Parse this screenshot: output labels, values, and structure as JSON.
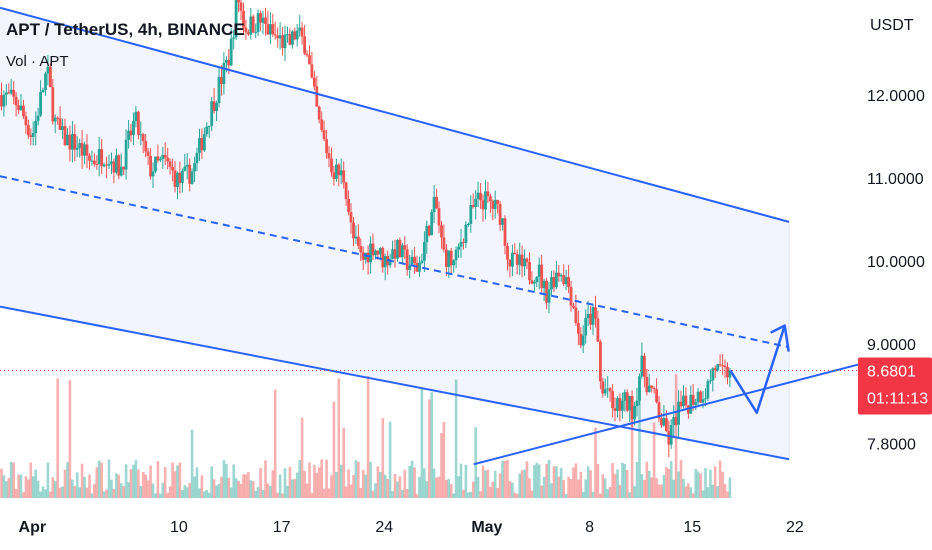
{
  "header": {
    "title": "APT / TetherUS, 4h, BINANCE",
    "indicator": "Vol · APT"
  },
  "price_axis": {
    "currency": "USDT",
    "current_price": "8.6801",
    "countdown": "01:11:13"
  },
  "colors": {
    "up": "#26a69a",
    "down": "#ef5350",
    "channel": "#2962ff",
    "channel_fill": "#eef2fd",
    "price_tag": "#f23645",
    "projection": "#2962ff"
  },
  "chart_data": {
    "type": "candlestick",
    "symbol": "APT / TetherUS",
    "interval": "4h",
    "exchange": "BINANCE",
    "y_axis": {
      "ticks": [
        12.0,
        11.0,
        10.0,
        9.0,
        7.8
      ],
      "tick_labels": [
        "12.0000",
        "11.0000",
        "10.0000",
        "9.0000",
        "7.8000"
      ],
      "unit": "USDT",
      "range": [
        7.55,
        13.0
      ]
    },
    "x_axis": {
      "tick_labels": [
        "Apr",
        "10",
        "17",
        "24",
        "May",
        "8",
        "15",
        "22"
      ],
      "bold_labels": [
        "Apr",
        "May"
      ],
      "tick_days": [
        -1,
        9,
        16,
        23,
        30,
        37,
        44,
        51
      ],
      "day_range": [
        -3.2,
        55.3
      ]
    },
    "last_price": 8.6801,
    "close_anchors": [
      [
        -3.0,
        12.0
      ],
      [
        -2.0,
        11.9
      ],
      [
        -1.0,
        11.5
      ],
      [
        0.0,
        12.3
      ],
      [
        0.5,
        11.7
      ],
      [
        1.0,
        11.5
      ],
      [
        2.0,
        11.4
      ],
      [
        3.0,
        11.2
      ],
      [
        4.0,
        11.3
      ],
      [
        5.0,
        11.1
      ],
      [
        6.0,
        11.7
      ],
      [
        7.0,
        11.1
      ],
      [
        8.0,
        11.2
      ],
      [
        9.0,
        10.95
      ],
      [
        10.0,
        11.1
      ],
      [
        10.8,
        11.6
      ],
      [
        11.5,
        12.0
      ],
      [
        12.5,
        12.5
      ],
      [
        13.0,
        13.2
      ],
      [
        13.5,
        12.8
      ],
      [
        14.5,
        12.9
      ],
      [
        15.5,
        12.7
      ],
      [
        16.5,
        12.6
      ],
      [
        17.0,
        12.75
      ],
      [
        17.7,
        12.6
      ],
      [
        18.0,
        12.2
      ],
      [
        18.6,
        11.6
      ],
      [
        19.5,
        11.1
      ],
      [
        20.3,
        11.0
      ],
      [
        20.8,
        10.3
      ],
      [
        21.5,
        10.0
      ],
      [
        22.2,
        10.2
      ],
      [
        23.0,
        10.0
      ],
      [
        23.8,
        10.15
      ],
      [
        24.5,
        10.0
      ],
      [
        25.3,
        9.9
      ],
      [
        26.0,
        10.4
      ],
      [
        26.5,
        10.7
      ],
      [
        27.0,
        10.1
      ],
      [
        27.8,
        9.95
      ],
      [
        28.3,
        10.3
      ],
      [
        29.0,
        10.6
      ],
      [
        29.5,
        10.75
      ],
      [
        30.2,
        10.7
      ],
      [
        31.0,
        10.55
      ],
      [
        31.5,
        10.0
      ],
      [
        32.2,
        9.95
      ],
      [
        33.0,
        9.85
      ],
      [
        33.5,
        9.9
      ],
      [
        34.0,
        9.6
      ],
      [
        34.5,
        9.8
      ],
      [
        35.0,
        9.9
      ],
      [
        35.5,
        9.75
      ],
      [
        36.0,
        9.4
      ],
      [
        36.3,
        9.0
      ],
      [
        36.8,
        9.25
      ],
      [
        37.2,
        9.35
      ],
      [
        37.5,
        9.2
      ],
      [
        37.8,
        8.35
      ],
      [
        38.2,
        8.5
      ],
      [
        38.5,
        8.2
      ],
      [
        39.0,
        8.25
      ],
      [
        39.5,
        8.3
      ],
      [
        40.0,
        8.2
      ],
      [
        40.5,
        8.75
      ],
      [
        41.0,
        8.5
      ],
      [
        41.5,
        8.3
      ],
      [
        42.0,
        8.0
      ],
      [
        42.4,
        7.85
      ],
      [
        42.7,
        8.0
      ],
      [
        43.0,
        8.2
      ],
      [
        43.5,
        8.25
      ],
      [
        44.0,
        8.35
      ],
      [
        44.5,
        8.4
      ],
      [
        45.0,
        8.45
      ],
      [
        45.5,
        8.75
      ],
      [
        46.0,
        8.6
      ],
      [
        46.6,
        8.68
      ]
    ],
    "channel": {
      "upper": {
        "start": [
          -3.2,
          13.05
        ],
        "end": [
          50.6,
          10.47
        ]
      },
      "mid": {
        "start": [
          -3.2,
          11.02
        ],
        "end": [
          50.6,
          8.96
        ]
      },
      "lower": {
        "start": [
          -3.2,
          9.45
        ],
        "end": [
          50.6,
          7.61
        ]
      },
      "fill_until_day": 50.6
    },
    "support_line": {
      "start": [
        29.1,
        7.55
      ],
      "end": [
        55.3,
        8.75
      ]
    },
    "projection_path": [
      [
        46.6,
        8.68
      ],
      [
        48.4,
        8.17
      ],
      [
        50.3,
        9.22
      ]
    ],
    "projection_arrow_tip": [
      50.3,
      9.22
    ]
  }
}
